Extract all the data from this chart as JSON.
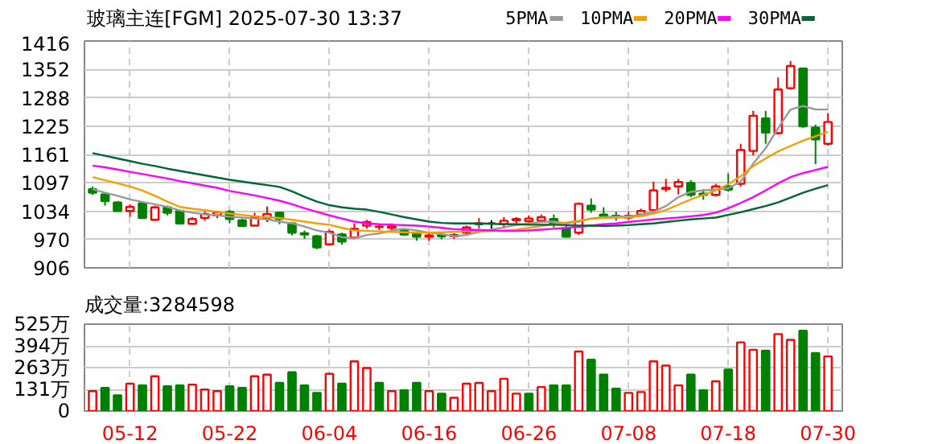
{
  "chart_data": [
    {
      "type": "candlestick",
      "title": "玻璃主连[FGM] 2025-07-30 13:37",
      "categories": [
        null,
        null,
        null,
        null,
        null,
        null,
        null,
        null,
        null,
        null,
        null,
        null,
        null,
        null,
        null,
        null,
        null,
        null,
        null,
        null,
        null,
        null,
        null,
        null,
        null,
        null,
        null,
        null,
        null,
        null,
        null,
        null,
        null,
        null,
        null,
        null,
        null,
        null,
        null,
        null,
        null,
        null,
        null,
        null,
        null,
        null,
        null,
        null,
        null,
        null,
        null,
        null,
        null,
        null,
        null,
        null,
        null,
        null,
        null,
        null
      ],
      "ohlc": [
        [
          1083,
          1089,
          1070,
          1075
        ],
        [
          1071,
          1073,
          1046,
          1056
        ],
        [
          1053,
          1056,
          1032,
          1034
        ],
        [
          1034,
          1049,
          1021,
          1043
        ],
        [
          1051,
          1056,
          1016,
          1018
        ],
        [
          1014,
          1046,
          1012,
          1042
        ],
        [
          1042,
          1046,
          1024,
          1030
        ],
        [
          1034,
          1037,
          1003,
          1006
        ],
        [
          1005,
          1020,
          1003,
          1016
        ],
        [
          1018,
          1033,
          1012,
          1027
        ],
        [
          1024,
          1034,
          1018,
          1031
        ],
        [
          1032,
          1036,
          1006,
          1016
        ],
        [
          1013,
          1016,
          998,
          1000
        ],
        [
          1001,
          1030,
          1000,
          1020
        ],
        [
          1018,
          1044,
          1009,
          1027
        ],
        [
          1030,
          1032,
          1004,
          1016
        ],
        [
          1006,
          1009,
          979,
          985
        ],
        [
          984,
          990,
          971,
          981
        ],
        [
          977,
          980,
          948,
          952
        ],
        [
          959,
          992,
          956,
          987
        ],
        [
          981,
          985,
          958,
          965
        ],
        [
          974,
          1006,
          971,
          994
        ],
        [
          1001,
          1014,
          994,
          1009
        ],
        [
          998,
          1005,
          991,
          999
        ],
        [
          996,
          1006,
          990,
          1000
        ],
        [
          990,
          993,
          978,
          981
        ],
        [
          983,
          987,
          967,
          976
        ],
        [
          976,
          985,
          967,
          979
        ],
        [
          980,
          985,
          970,
          977
        ],
        [
          977,
          984,
          971,
          980
        ],
        [
          985,
          1001,
          979,
          997
        ],
        [
          1004,
          1018,
          994,
          1006
        ],
        [
          1006,
          1013,
          994,
          1006
        ],
        [
          1004,
          1020,
          994,
          1012
        ],
        [
          1013,
          1020,
          1006,
          1016
        ],
        [
          1011,
          1024,
          1003,
          1017
        ],
        [
          1012,
          1026,
          1009,
          1020
        ],
        [
          1016,
          1026,
          997,
          1004
        ],
        [
          994,
          1000,
          974,
          976
        ],
        [
          985,
          1053,
          980,
          1050
        ],
        [
          1046,
          1062,
          1030,
          1037
        ],
        [
          1026,
          1042,
          1018,
          1023
        ],
        [
          1023,
          1032,
          1012,
          1020
        ],
        [
          1019,
          1032,
          1014,
          1023
        ],
        [
          1026,
          1039,
          1022,
          1034
        ],
        [
          1036,
          1100,
          1027,
          1080
        ],
        [
          1083,
          1106,
          1077,
          1086
        ],
        [
          1089,
          1106,
          1071,
          1099
        ],
        [
          1097,
          1103,
          1065,
          1070
        ],
        [
          1073,
          1083,
          1059,
          1070
        ],
        [
          1070,
          1095,
          1066,
          1089
        ],
        [
          1089,
          1118,
          1077,
          1082
        ],
        [
          1095,
          1185,
          1089,
          1171
        ],
        [
          1169,
          1259,
          1159,
          1248
        ],
        [
          1242,
          1259,
          1185,
          1210
        ],
        [
          1209,
          1334,
          1206,
          1307
        ],
        [
          1310,
          1371,
          1307,
          1360
        ],
        [
          1354,
          1356,
          1221,
          1224
        ],
        [
          1221,
          1228,
          1139,
          1195
        ],
        [
          1185,
          1254,
          1181,
          1234
        ]
      ],
      "colors": [
        "#008000",
        "#008000",
        "#008000",
        "#ff0000",
        "#008000",
        "#ff0000",
        "#008000",
        "#008000",
        "#ff0000",
        "#ff0000",
        "#ff0000",
        "#008000",
        "#008000",
        "#ff0000",
        "#ff0000",
        "#008000",
        "#008000",
        "#008000",
        "#008000",
        "#ff0000",
        "#008000",
        "#ff0000",
        "#ff0000",
        "#ff0000",
        "#ff0000",
        "#008000",
        "#008000",
        "#ff0000",
        "#008000",
        "#ff0000",
        "#ff0000",
        "#ff0000",
        "#000000",
        "#ff0000",
        "#ff0000",
        "#ff0000",
        "#ff0000",
        "#008000",
        "#008000",
        "#ff0000",
        "#008000",
        "#008000",
        "#008000",
        "#ff0000",
        "#ff0000",
        "#ff0000",
        "#ff0000",
        "#ff0000",
        "#008000",
        "#008000",
        "#ff0000",
        "#008000",
        "#ff0000",
        "#ff0000",
        "#008000",
        "#ff0000",
        "#ff0000",
        "#008000",
        "#008000",
        "#ff0000"
      ],
      "series": [
        {
          "type": "line",
          "name": "5PMA",
          "color": "#999999",
          "values": [
            1083,
            1075,
            1068,
            1060,
            1054,
            1049,
            1043,
            1035,
            1030,
            1026,
            1024,
            1021,
            1019,
            1017,
            1015,
            1010,
            1006,
            999,
            990,
            985,
            975,
            972,
            980,
            983,
            990,
            994,
            990,
            985,
            982,
            977,
            980,
            987,
            992,
            997,
            1002,
            1006,
            1009,
            1010,
            1006,
            1010,
            1017,
            1020,
            1021,
            1022,
            1025,
            1032,
            1045,
            1065,
            1077,
            1080,
            1082,
            1085,
            1100,
            1140,
            1175,
            1220,
            1262,
            1270,
            1262,
            1262
          ]
        },
        {
          "type": "line",
          "name": "10PMA",
          "color": "#f5a000",
          "values": [
            1110,
            1103,
            1096,
            1089,
            1080,
            1068,
            1055,
            1043,
            1039,
            1036,
            1032,
            1028,
            1025,
            1022,
            1020,
            1018,
            1014,
            1010,
            1006,
            1003,
            996,
            990,
            989,
            988,
            987,
            986,
            985,
            985,
            986,
            987,
            988,
            988,
            989,
            990,
            992,
            996,
            1000,
            1004,
            1008,
            1012,
            1016,
            1018,
            1019,
            1020,
            1022,
            1028,
            1036,
            1048,
            1060,
            1070,
            1080,
            1094,
            1112,
            1135,
            1152,
            1168,
            1180,
            1192,
            1202,
            1212
          ]
        },
        {
          "type": "line",
          "name": "20PMA",
          "color": "#ff00ff",
          "values": [
            1136,
            1132,
            1127,
            1122,
            1117,
            1112,
            1107,
            1101,
            1096,
            1091,
            1086,
            1079,
            1074,
            1069,
            1063,
            1057,
            1049,
            1040,
            1032,
            1024,
            1017,
            1010,
            1006,
            1004,
            1003,
            1002,
            1001,
            999,
            996,
            993,
            992,
            991,
            990,
            989,
            989,
            990,
            992,
            994,
            996,
            998,
            1001,
            1004,
            1006,
            1009,
            1012,
            1015,
            1017,
            1019,
            1022,
            1025,
            1030,
            1040,
            1052,
            1065,
            1080,
            1096,
            1110,
            1119,
            1126,
            1133
          ]
        },
        {
          "type": "line",
          "name": "30PMA",
          "color": "#006633",
          "values": [
            1164,
            1158,
            1152,
            1146,
            1140,
            1135,
            1129,
            1124,
            1119,
            1114,
            1109,
            1104,
            1100,
            1096,
            1092,
            1088,
            1078,
            1066,
            1055,
            1047,
            1042,
            1039,
            1037,
            1032,
            1026,
            1020,
            1015,
            1010,
            1007,
            1006,
            1006,
            1006,
            1005,
            1004,
            1004,
            1003,
            1003,
            1003,
            1002,
            1001,
            1001,
            1000,
            1001,
            1002,
            1004,
            1006,
            1009,
            1012,
            1015,
            1017,
            1019,
            1025,
            1031,
            1038,
            1045,
            1053,
            1064,
            1075,
            1084,
            1092
          ]
        }
      ],
      "ylim": [
        906,
        1416
      ],
      "yticks": [
        906,
        {
          "value": 969.75,
          "label": "970"
        },
        {
          "value": 1033.5,
          "label": "1034"
        },
        {
          "value": 1097.25,
          "label": "1097"
        },
        1161,
        {
          "value": 1224.75,
          "label": "1225"
        },
        {
          "value": 1288.5,
          "label": "1288"
        },
        {
          "value": 1352.25,
          "label": "1352"
        },
        1416
      ],
      "grid": true,
      "legend": "top right"
    },
    {
      "type": "bar",
      "title": "成交量:3284598",
      "categories": [
        null,
        null,
        null,
        "05-12",
        null,
        null,
        null,
        null,
        null,
        null,
        null,
        "05-22",
        null,
        null,
        null,
        null,
        null,
        null,
        null,
        "06-04",
        null,
        null,
        null,
        null,
        null,
        null,
        null,
        "06-16",
        null,
        null,
        null,
        null,
        null,
        null,
        null,
        "06-26",
        null,
        null,
        null,
        null,
        null,
        null,
        null,
        "07-08",
        null,
        null,
        null,
        null,
        null,
        null,
        null,
        "07-18",
        null,
        null,
        null,
        null,
        null,
        null,
        null,
        "07-30"
      ],
      "values": [
        120,
        140,
        95,
        165,
        155,
        210,
        150,
        155,
        160,
        130,
        120,
        150,
        140,
        210,
        220,
        170,
        235,
        155,
        110,
        225,
        165,
        300,
        260,
        170,
        120,
        125,
        170,
        120,
        105,
        80,
        165,
        170,
        120,
        195,
        105,
        105,
        145,
        155,
        155,
        360,
        310,
        220,
        135,
        110,
        115,
        300,
        275,
        155,
        220,
        125,
        180,
        250,
        415,
        370,
        365,
        465,
        430,
        485,
        350,
        330
      ],
      "colors": [
        "#ff0000",
        "#008000",
        "#008000",
        "#ff0000",
        "#008000",
        "#ff0000",
        "#008000",
        "#008000",
        "#ff0000",
        "#ff0000",
        "#ff0000",
        "#008000",
        "#008000",
        "#ff0000",
        "#ff0000",
        "#008000",
        "#008000",
        "#008000",
        "#008000",
        "#ff0000",
        "#008000",
        "#ff0000",
        "#ff0000",
        "#008000",
        "#ff0000",
        "#008000",
        "#008000",
        "#ff0000",
        "#008000",
        "#ff0000",
        "#ff0000",
        "#ff0000",
        "#ff0000",
        "#ff0000",
        "#ff0000",
        "#008000",
        "#ff0000",
        "#008000",
        "#008000",
        "#ff0000",
        "#008000",
        "#008000",
        "#008000",
        "#ff0000",
        "#ff0000",
        "#ff0000",
        "#ff0000",
        "#ff0000",
        "#008000",
        "#008000",
        "#ff0000",
        "#008000",
        "#ff0000",
        "#ff0000",
        "#008000",
        "#ff0000",
        "#ff0000",
        "#008000",
        "#008000",
        "#ff0000"
      ],
      "ylim": [
        0,
        525
      ],
      "yticks": [
        0,
        {
          "value": 131.25,
          "label": "131万"
        },
        {
          "value": 262.5,
          "label": "263万"
        },
        {
          "value": 393.75,
          "label": "394万"
        },
        {
          "value": 525,
          "label": "525万"
        }
      ],
      "grid": true
    }
  ]
}
